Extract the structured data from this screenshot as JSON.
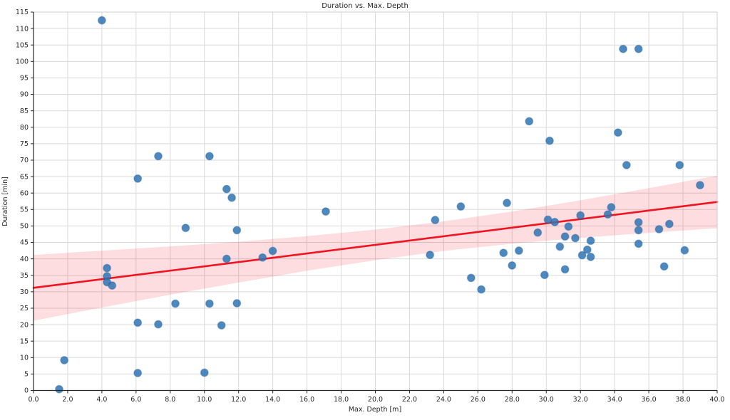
{
  "title": "Duration vs. Max. Depth",
  "chart_data": {
    "type": "scatter",
    "title": "Duration vs. Max. Depth",
    "xlabel": "Max. Depth [m]",
    "ylabel": "Duration [min]",
    "xlim": [
      0,
      40
    ],
    "ylim": [
      0,
      115
    ],
    "grid": true,
    "legend": "none",
    "xtick_labels": [
      "0.0",
      "2.0",
      "4.0",
      "6.0",
      "8.0",
      "10.0",
      "12.0",
      "14.0",
      "16.0",
      "18.0",
      "20.0",
      "22.0",
      "24.0",
      "26.0",
      "28.0",
      "30.0",
      "32.0",
      "34.0",
      "36.0",
      "38.0",
      "40.0"
    ],
    "ytick_labels": [
      "0",
      "5",
      "10",
      "15",
      "20",
      "25",
      "30",
      "35",
      "40",
      "45",
      "50",
      "55",
      "60",
      "65",
      "70",
      "75",
      "80",
      "85",
      "90",
      "95",
      "100",
      "105",
      "110",
      "115"
    ],
    "points": [
      [
        4.0,
        112.5
      ],
      [
        1.5,
        0.4
      ],
      [
        1.8,
        9.2
      ],
      [
        6.1,
        5.3
      ],
      [
        10.0,
        5.4
      ],
      [
        6.1,
        20.6
      ],
      [
        7.3,
        20.1
      ],
      [
        11.0,
        19.8
      ],
      [
        8.3,
        26.4
      ],
      [
        10.3,
        26.4
      ],
      [
        11.9,
        26.5
      ],
      [
        4.3,
        37.2
      ],
      [
        4.3,
        34.7
      ],
      [
        4.3,
        32.9
      ],
      [
        4.6,
        31.9
      ],
      [
        6.1,
        64.4
      ],
      [
        7.3,
        71.2
      ],
      [
        10.3,
        71.2
      ],
      [
        11.3,
        61.2
      ],
      [
        11.6,
        58.6
      ],
      [
        8.9,
        49.4
      ],
      [
        11.9,
        48.7
      ],
      [
        11.3,
        40.0
      ],
      [
        13.4,
        40.4
      ],
      [
        14.0,
        42.4
      ],
      [
        17.1,
        54.4
      ],
      [
        23.2,
        41.2
      ],
      [
        23.5,
        51.8
      ],
      [
        25.0,
        55.9
      ],
      [
        25.6,
        34.2
      ],
      [
        26.2,
        30.7
      ],
      [
        27.5,
        41.8
      ],
      [
        28.4,
        42.5
      ],
      [
        28.0,
        38.0
      ],
      [
        27.7,
        57.0
      ],
      [
        29.0,
        81.8
      ],
      [
        30.2,
        75.9
      ],
      [
        29.5,
        48.0
      ],
      [
        29.9,
        35.1
      ],
      [
        30.1,
        51.9
      ],
      [
        30.5,
        51.2
      ],
      [
        31.3,
        49.8
      ],
      [
        31.1,
        46.8
      ],
      [
        31.7,
        46.3
      ],
      [
        30.8,
        43.7
      ],
      [
        31.1,
        36.8
      ],
      [
        32.0,
        53.2
      ],
      [
        32.4,
        42.8
      ],
      [
        32.1,
        41.1
      ],
      [
        32.6,
        40.6
      ],
      [
        32.6,
        45.5
      ],
      [
        33.6,
        53.5
      ],
      [
        33.8,
        55.7
      ],
      [
        34.2,
        78.4
      ],
      [
        34.5,
        103.8
      ],
      [
        35.4,
        103.8
      ],
      [
        34.7,
        68.5
      ],
      [
        35.4,
        51.1
      ],
      [
        35.4,
        48.7
      ],
      [
        35.4,
        44.6
      ],
      [
        36.6,
        49.0
      ],
      [
        37.2,
        50.6
      ],
      [
        36.9,
        37.7
      ],
      [
        37.8,
        68.5
      ],
      [
        38.1,
        42.6
      ],
      [
        39.0,
        62.4
      ]
    ],
    "regression_line": {
      "x": [
        0,
        40
      ],
      "y": [
        31.2,
        57.3
      ]
    },
    "confidence_band": {
      "x": [
        0,
        4,
        8,
        12,
        16,
        20,
        24,
        28,
        32,
        36,
        40
      ],
      "top": [
        41.2,
        42.5,
        43.8,
        45.2,
        46.9,
        48.9,
        51.4,
        54.4,
        57.8,
        61.5,
        65.3
      ],
      "bottom": [
        21.2,
        25.2,
        29.1,
        32.8,
        36.4,
        39.6,
        42.4,
        44.6,
        46.4,
        47.9,
        49.3
      ]
    },
    "colors": {
      "point_fill": "#2f74b3",
      "point_edge": "#1f5f9e",
      "line": "#f01420",
      "band": "#f01e2d",
      "grid": "#d9d9d9",
      "spine_dark": "#262626",
      "spine_light": "#cccccc",
      "text": "#262626",
      "background": "#ffffff"
    }
  }
}
